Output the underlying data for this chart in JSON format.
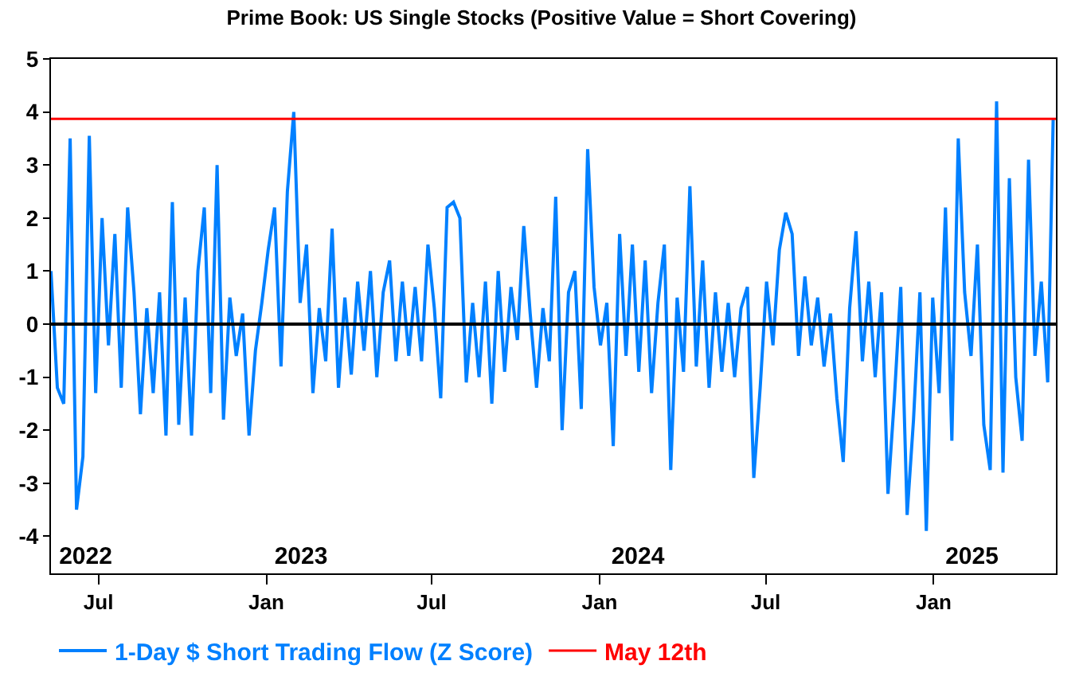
{
  "chart_data": {
    "type": "line",
    "title": "Prime Book: US Single Stocks (Positive Value = Short Covering)",
    "x": [
      "2022-05-10",
      "2022-05-17",
      "2022-05-24",
      "2022-05-31",
      "2022-06-07",
      "2022-06-14",
      "2022-06-21",
      "2022-06-28",
      "2022-07-05",
      "2022-07-12",
      "2022-07-19",
      "2022-07-26",
      "2022-08-02",
      "2022-08-09",
      "2022-08-16",
      "2022-08-23",
      "2022-08-30",
      "2022-09-06",
      "2022-09-13",
      "2022-09-20",
      "2022-09-27",
      "2022-10-04",
      "2022-10-11",
      "2022-10-18",
      "2022-10-25",
      "2022-11-01",
      "2022-11-08",
      "2022-11-15",
      "2022-11-22",
      "2022-11-29",
      "2022-12-06",
      "2022-12-13",
      "2022-12-20",
      "2022-12-27",
      "2023-01-03",
      "2023-01-10",
      "2023-01-17",
      "2023-01-24",
      "2023-01-31",
      "2023-02-07",
      "2023-02-14",
      "2023-02-21",
      "2023-02-28",
      "2023-03-07",
      "2023-03-14",
      "2023-03-21",
      "2023-03-28",
      "2023-04-04",
      "2023-04-11",
      "2023-04-18",
      "2023-04-25",
      "2023-05-02",
      "2023-05-09",
      "2023-05-16",
      "2023-05-23",
      "2023-05-30",
      "2023-06-06",
      "2023-06-13",
      "2023-06-20",
      "2023-06-27",
      "2023-07-04",
      "2023-07-11",
      "2023-07-18",
      "2023-07-25",
      "2023-08-01",
      "2023-08-08",
      "2023-08-15",
      "2023-08-22",
      "2023-08-29",
      "2023-09-05",
      "2023-09-12",
      "2023-09-19",
      "2023-09-26",
      "2023-10-03",
      "2023-10-10",
      "2023-10-17",
      "2023-10-24",
      "2023-10-31",
      "2023-11-07",
      "2023-11-14",
      "2023-11-21",
      "2023-11-28",
      "2023-12-05",
      "2023-12-12",
      "2023-12-19",
      "2023-12-26",
      "2024-01-02",
      "2024-01-09",
      "2024-01-16",
      "2024-01-23",
      "2024-01-30",
      "2024-02-06",
      "2024-02-13",
      "2024-02-20",
      "2024-02-27",
      "2024-03-05",
      "2024-03-12",
      "2024-03-19",
      "2024-03-26",
      "2024-04-02",
      "2024-04-09",
      "2024-04-16",
      "2024-04-23",
      "2024-04-30",
      "2024-05-07",
      "2024-05-14",
      "2024-05-21",
      "2024-05-28",
      "2024-06-04",
      "2024-06-11",
      "2024-06-18",
      "2024-06-25",
      "2024-07-02",
      "2024-07-09",
      "2024-07-16",
      "2024-07-23",
      "2024-07-30",
      "2024-08-06",
      "2024-08-13",
      "2024-08-20",
      "2024-08-27",
      "2024-09-03",
      "2024-09-10",
      "2024-09-17",
      "2024-09-24",
      "2024-10-01",
      "2024-10-08",
      "2024-10-15",
      "2024-10-22",
      "2024-10-29",
      "2024-11-05",
      "2024-11-12",
      "2024-11-19",
      "2024-11-26",
      "2024-12-03",
      "2024-12-10",
      "2024-12-17",
      "2024-12-24",
      "2024-12-31",
      "2025-01-07",
      "2025-01-14",
      "2025-01-21",
      "2025-01-28",
      "2025-02-04",
      "2025-02-11",
      "2025-02-18",
      "2025-02-25",
      "2025-03-04",
      "2025-03-11",
      "2025-03-18",
      "2025-03-25",
      "2025-04-01",
      "2025-04-08",
      "2025-04-15",
      "2025-04-22",
      "2025-04-29",
      "2025-05-06",
      "2025-05-12"
    ],
    "series": [
      {
        "name": "1-Day $ Short Trading Flow (Z Score)",
        "color": "#0080ff",
        "values": [
          1.0,
          -1.2,
          -1.5,
          3.5,
          -3.5,
          -2.5,
          3.55,
          -1.3,
          2.0,
          -0.4,
          1.7,
          -1.2,
          2.2,
          0.6,
          -1.7,
          0.3,
          -1.3,
          0.6,
          -2.1,
          2.3,
          -1.9,
          0.5,
          -2.1,
          1.0,
          2.2,
          -1.3,
          3.0,
          -1.8,
          0.5,
          -0.6,
          0.2,
          -2.1,
          -0.5,
          0.4,
          1.4,
          2.2,
          -0.8,
          2.5,
          4.0,
          0.4,
          1.5,
          -1.3,
          0.3,
          -0.7,
          1.8,
          -1.2,
          0.5,
          -0.95,
          0.8,
          -0.5,
          1.0,
          -1.0,
          0.6,
          1.2,
          -0.7,
          0.8,
          -0.6,
          0.7,
          -0.7,
          1.5,
          0.3,
          -1.4,
          2.2,
          2.3,
          2.0,
          -1.1,
          0.4,
          -1.0,
          0.8,
          -1.5,
          1.0,
          -0.9,
          0.7,
          -0.3,
          1.85,
          0.2,
          -1.2,
          0.3,
          -0.7,
          2.4,
          -2.0,
          0.6,
          1.0,
          -1.6,
          3.3,
          0.7,
          -0.4,
          0.4,
          -2.3,
          1.7,
          -0.6,
          1.5,
          -0.9,
          1.2,
          -1.3,
          0.4,
          1.5,
          -2.75,
          0.5,
          -0.9,
          2.6,
          -0.8,
          1.2,
          -1.2,
          0.6,
          -0.9,
          0.4,
          -1.0,
          0.3,
          0.7,
          -2.9,
          -1.2,
          0.8,
          -0.4,
          1.4,
          2.1,
          1.7,
          -0.6,
          0.9,
          -0.4,
          0.5,
          -0.8,
          0.2,
          -1.4,
          -2.6,
          0.3,
          1.75,
          -0.7,
          0.8,
          -1.0,
          0.6,
          -3.2,
          -1.4,
          0.7,
          -3.6,
          -1.8,
          0.6,
          -3.9,
          0.5,
          -1.3,
          2.2,
          -2.2,
          3.5,
          0.6,
          -0.6,
          1.5,
          -1.9,
          -2.75,
          4.2,
          -2.8,
          2.75,
          -1.0,
          -2.2,
          3.1,
          -0.6,
          0.8,
          -1.1,
          3.87
        ]
      }
    ],
    "xlim": [
      "2022-05-10",
      "2025-05-15"
    ],
    "xticks": [
      {
        "value": "2022-07-01",
        "label": "Jul"
      },
      {
        "value": "2023-01-01",
        "label": "Jan"
      },
      {
        "value": "2023-07-01",
        "label": "Jul"
      },
      {
        "value": "2024-01-01",
        "label": "Jan"
      },
      {
        "value": "2024-07-01",
        "label": "Jul"
      },
      {
        "value": "2025-01-01",
        "label": "Jan"
      }
    ],
    "x2lim": [
      "2022-05-10",
      "2025-05-15"
    ],
    "x2ticks": [
      {
        "value": "2022-06-17",
        "label": "2022"
      },
      {
        "value": "2023-02-08",
        "label": "2023"
      },
      {
        "value": "2024-02-12",
        "label": "2024"
      },
      {
        "value": "2025-02-12",
        "label": "2025"
      }
    ],
    "ylim": [
      -4.7,
      5
    ],
    "yticks": [
      -4,
      -3,
      -2,
      -1,
      0,
      1,
      2,
      3,
      4,
      5
    ],
    "ref_lines": [
      {
        "axis": "y",
        "value": 3.87,
        "label": "May 12th",
        "color": "#ff0000"
      },
      {
        "axis": "y",
        "value": 0,
        "color": "#000000"
      }
    ],
    "legend": "bottom"
  }
}
